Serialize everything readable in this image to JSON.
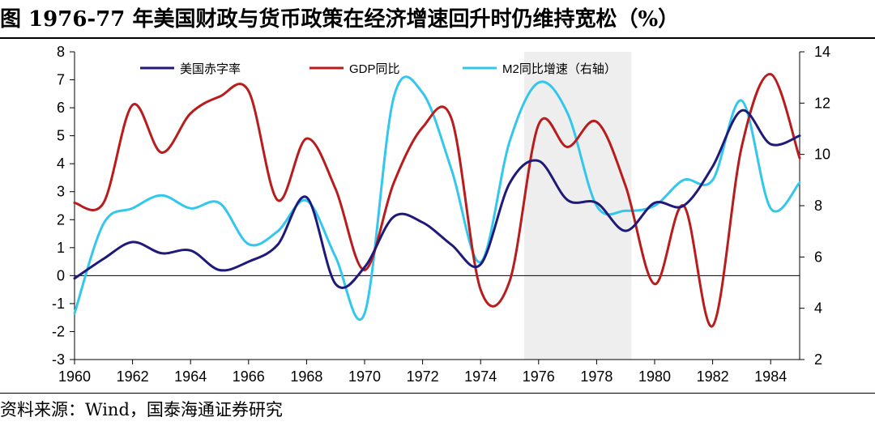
{
  "title": "图  1976-77 年美国财政与货币政策在经济增速回升时仍维持宽松（%）",
  "source": "资料来源：Wind，国泰海通证券研究",
  "chart_data": {
    "type": "line",
    "title": "1976-77 年美国财政与货币政策在经济增速回升时仍维持宽松（%）",
    "x_ticks": [
      "1960",
      "1962",
      "1964",
      "1966",
      "1968",
      "1970",
      "1972",
      "1974",
      "1976",
      "1978",
      "1980",
      "1982",
      "1984"
    ],
    "xlim": [
      1960,
      1985
    ],
    "ylim_left": [
      -3,
      8
    ],
    "yticks_left": [
      "-3",
      "-2",
      "-1",
      "0",
      "1",
      "2",
      "3",
      "4",
      "5",
      "6",
      "7",
      "8"
    ],
    "ylim_right": [
      2,
      14
    ],
    "yticks_right": [
      "2",
      "4",
      "6",
      "8",
      "10",
      "12",
      "14"
    ],
    "shaded_period": [
      1975.5,
      1979.2
    ],
    "series": [
      {
        "name": "美国赤字率",
        "axis": "left",
        "color": "#1f1a7a",
        "x": [
          1960,
          1961,
          1962,
          1963,
          1964,
          1965,
          1966,
          1967,
          1968,
          1969,
          1970,
          1971,
          1972,
          1973,
          1974,
          1975,
          1976,
          1977,
          1978,
          1979,
          1980,
          1981,
          1982,
          1983,
          1984,
          1985
        ],
        "y": [
          -0.1,
          0.6,
          1.2,
          0.8,
          0.9,
          0.2,
          0.5,
          1.1,
          2.8,
          -0.3,
          0.3,
          2.1,
          1.9,
          1.1,
          0.4,
          3.3,
          4.1,
          2.7,
          2.6,
          1.6,
          2.6,
          2.5,
          3.9,
          5.9,
          4.7,
          5.0
        ]
      },
      {
        "name": "GDP同比",
        "axis": "left",
        "color": "#b81c1c",
        "x": [
          1960,
          1961,
          1962,
          1963,
          1964,
          1965,
          1966,
          1967,
          1968,
          1969,
          1970,
          1971,
          1972,
          1973,
          1974,
          1975,
          1976,
          1977,
          1978,
          1979,
          1980,
          1981,
          1982,
          1983,
          1984,
          1985
        ],
        "y": [
          2.6,
          2.6,
          6.1,
          4.4,
          5.8,
          6.4,
          6.6,
          2.7,
          4.9,
          3.1,
          0.2,
          3.3,
          5.3,
          5.6,
          -0.5,
          -0.2,
          5.4,
          4.6,
          5.5,
          3.2,
          -0.3,
          2.5,
          -1.8,
          4.6,
          7.2,
          4.2
        ]
      },
      {
        "name": "M2同比增速（右轴）",
        "axis": "right",
        "color": "#33c7ee",
        "x": [
          1960,
          1961,
          1962,
          1963,
          1964,
          1965,
          1966,
          1967,
          1968,
          1969,
          1970,
          1971,
          1972,
          1973,
          1974,
          1975,
          1976,
          1977,
          1978,
          1979,
          1980,
          1981,
          1982,
          1983,
          1984,
          1985
        ],
        "y": [
          3.8,
          7.3,
          7.9,
          8.4,
          7.9,
          8.1,
          6.5,
          7.0,
          8.2,
          6.0,
          3.8,
          12.2,
          12.4,
          9.4,
          5.8,
          10.5,
          12.8,
          11.6,
          8.0,
          7.8,
          8.0,
          9.0,
          9.0,
          12.1,
          7.9,
          8.9
        ]
      }
    ],
    "legend": [
      "美国赤字率",
      "GDP同比",
      "M2同比增速（右轴）"
    ]
  }
}
